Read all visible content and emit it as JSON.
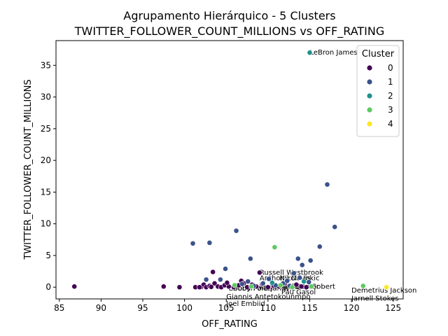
{
  "chart_data": {
    "type": "scatter",
    "title_line1": "Agrupamento Hierárquico - 5 Clusters",
    "title_line2": "TWITTER_FOLLOWER_COUNT_MILLIONS vs OFF_RATING",
    "xlabel": "OFF_RATING",
    "ylabel": "TWITTER_FOLLOWER_COUNT_MILLIONS",
    "xlim": [
      84.6,
      126.2
    ],
    "ylim": [
      -1.85,
      38.9
    ],
    "x_ticks": [
      85,
      90,
      95,
      100,
      105,
      110,
      115,
      120,
      125
    ],
    "y_ticks": [
      0,
      5,
      10,
      15,
      20,
      25,
      30,
      35
    ],
    "grid": false,
    "legend": {
      "title": "Cluster",
      "placement": "top-right",
      "entries": [
        {
          "label": "0",
          "color": "#440154"
        },
        {
          "label": "1",
          "color": "#3b528b"
        },
        {
          "label": "2",
          "color": "#21918c"
        },
        {
          "label": "3",
          "color": "#5ec962"
        },
        {
          "label": "4",
          "color": "#fde725"
        }
      ]
    },
    "series": [
      {
        "cluster": 0,
        "color": "#440154",
        "points": [
          [
            86.8,
            0.1
          ],
          [
            97.5,
            0.1
          ],
          [
            99.4,
            0.0
          ],
          [
            101.3,
            0.0
          ],
          [
            102.0,
            0.05
          ],
          [
            102.3,
            0.4
          ],
          [
            102.6,
            0.0
          ],
          [
            103.0,
            0.2
          ],
          [
            103.4,
            2.4
          ],
          [
            103.6,
            0.6
          ],
          [
            104.0,
            0.1
          ],
          [
            104.4,
            0.0
          ],
          [
            104.8,
            0.3
          ],
          [
            105.3,
            0.1
          ],
          [
            105.9,
            0.0
          ],
          [
            106.5,
            0.3
          ],
          [
            106.8,
            1.0
          ],
          [
            107.1,
            0.6
          ],
          [
            107.5,
            0.0
          ],
          [
            108.1,
            0.4
          ],
          [
            108.6,
            0.1
          ],
          [
            109.0,
            2.3
          ],
          [
            109.3,
            0.5
          ],
          [
            110.0,
            0.0
          ],
          [
            110.7,
            0.2
          ],
          [
            111.3,
            0.1
          ],
          [
            112.0,
            0.6
          ],
          [
            112.8,
            0.0
          ],
          [
            113.4,
            0.4
          ],
          [
            114.0,
            0.1
          ],
          [
            114.6,
            0.0
          ],
          [
            105.1,
            0.7
          ],
          [
            103.2,
            0.05
          ],
          [
            101.8,
            0.0
          ]
        ]
      },
      {
        "cluster": 1,
        "color": "#3b528b",
        "points": [
          [
            101.0,
            6.9
          ],
          [
            103.0,
            7.0
          ],
          [
            106.2,
            8.9
          ],
          [
            107.9,
            4.5
          ],
          [
            104.9,
            2.9
          ],
          [
            104.3,
            1.2
          ],
          [
            102.6,
            1.2
          ],
          [
            107.6,
            0.9
          ],
          [
            109.4,
            0.6
          ],
          [
            110.1,
            1.3
          ],
          [
            110.9,
            0.3
          ],
          [
            111.8,
            0.6
          ],
          [
            112.6,
            0.2
          ],
          [
            113.1,
            2.2
          ],
          [
            113.6,
            4.5
          ],
          [
            114.1,
            3.5
          ],
          [
            115.1,
            4.2
          ],
          [
            114.9,
            0.8
          ],
          [
            116.2,
            6.4
          ],
          [
            117.1,
            16.2
          ],
          [
            118.0,
            9.5
          ],
          [
            113.8,
            1.5
          ],
          [
            112.3,
            1.0
          ],
          [
            106.9,
            0.5
          ],
          [
            108.3,
            0.2
          ]
        ]
      },
      {
        "cluster": 2,
        "color": "#21918c",
        "points": [
          [
            115.0,
            37.0
          ],
          [
            110.5,
            0.7
          ],
          [
            114.3,
            0.9
          ]
        ]
      },
      {
        "cluster": 3,
        "color": "#5ec962",
        "points": [
          [
            110.8,
            6.3
          ],
          [
            121.4,
            0.2
          ],
          [
            106.0,
            0.3
          ],
          [
            108.0,
            0.1
          ],
          [
            111.5,
            0.3
          ],
          [
            115.2,
            0.1
          ],
          [
            112.9,
            0.0
          ]
        ]
      },
      {
        "cluster": 4,
        "color": "#fde725",
        "points": [
          [
            124.2,
            0.0
          ]
        ]
      }
    ],
    "annotations": [
      {
        "text": "LeBron James",
        "x": 115.0,
        "y": 37.0
      },
      {
        "text": "Russell Westbrook",
        "x": 109.0,
        "y": 2.3
      },
      {
        "text": "Anthony Davis",
        "x": 109.0,
        "y": 1.4
      },
      {
        "text": "Nikola Jokic",
        "x": 111.4,
        "y": 1.4
      },
      {
        "text": "James Harden",
        "x": 109.0,
        "y": 0.0
      },
      {
        "text": "Kyle Korver",
        "x": 111.4,
        "y": 0.1
      },
      {
        "text": "Rudy Gobert",
        "x": 112.8,
        "y": 0.1
      },
      {
        "text": "Bobby Portis",
        "x": 105.3,
        "y": -0.2
      },
      {
        "text": "Boban Marjanovic",
        "x": 105.8,
        "y": -0.2
      },
      {
        "text": "Pau Gasol",
        "x": 111.6,
        "y": -0.8
      },
      {
        "text": "Giannis Antetokounmpo",
        "x": 105.0,
        "y": -1.5
      },
      {
        "text": "Joel Embiid",
        "x": 105.0,
        "y": -2.6
      },
      {
        "text": "Demetrius Jackson",
        "x": 120.0,
        "y": -0.5
      },
      {
        "text": "Jarnell Stokes",
        "x": 120.0,
        "y": -1.8
      }
    ]
  }
}
